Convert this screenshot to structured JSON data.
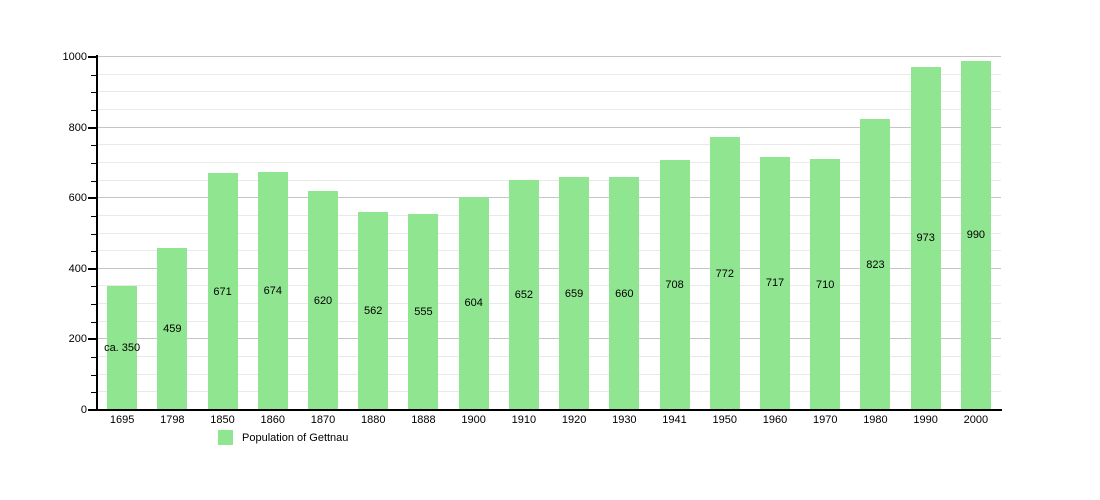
{
  "chart_data": {
    "type": "bar",
    "title": "",
    "categories": [
      "1695",
      "1798",
      "1850",
      "1860",
      "1870",
      "1880",
      "1888",
      "1900",
      "1910",
      "1920",
      "1930",
      "1941",
      "1950",
      "1960",
      "1970",
      "1980",
      "1990",
      "2000"
    ],
    "values": [
      350,
      459,
      671,
      674,
      620,
      562,
      555,
      604,
      652,
      659,
      660,
      708,
      772,
      717,
      710,
      823,
      973,
      990
    ],
    "bar_labels": [
      "ca. 350",
      "459",
      "671",
      "674",
      "620",
      "562",
      "555",
      "604",
      "652",
      "659",
      "660",
      "708",
      "772",
      "717",
      "710",
      "823",
      "973",
      "990"
    ],
    "xlabel": "",
    "ylabel": "",
    "ylim": [
      0,
      1000
    ],
    "yticks": [
      0,
      200,
      400,
      600,
      800,
      1000
    ],
    "minor_gridline_step": 50,
    "grid": "on",
    "legend_position": "bottom-left",
    "legend": {
      "label": "Population of Gettnau",
      "swatch_color": "#90e690"
    },
    "colors": {
      "bar": "#90e690",
      "gridline_major": "#c4c4c4",
      "gridline_minor": "#e9e9e9",
      "axis": "#000000",
      "text": "#000000",
      "background": "#ffffff"
    }
  }
}
